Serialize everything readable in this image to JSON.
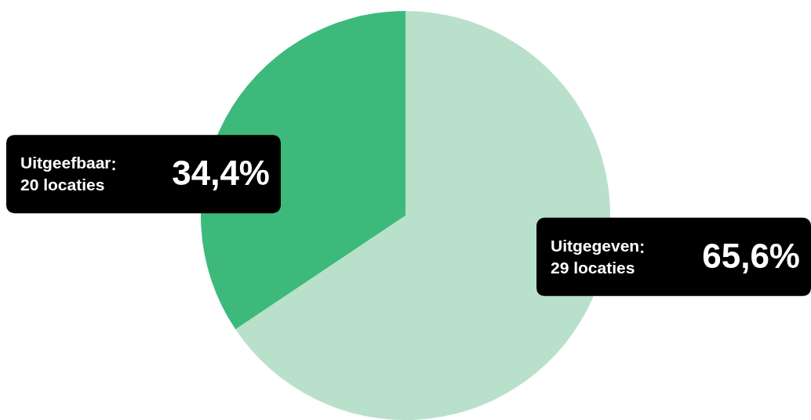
{
  "chart_data": {
    "type": "pie",
    "categories": [
      "Uitgegeven",
      "Uitgeefbaar"
    ],
    "values": [
      65.6,
      34.4
    ],
    "colors": [
      "#b9e0ca",
      "#3dba7b"
    ],
    "value_labels": [
      "65,6%",
      "34,4%"
    ],
    "annotations": [
      "29 locaties",
      "20 locaties"
    ],
    "legend": false
  }
}
